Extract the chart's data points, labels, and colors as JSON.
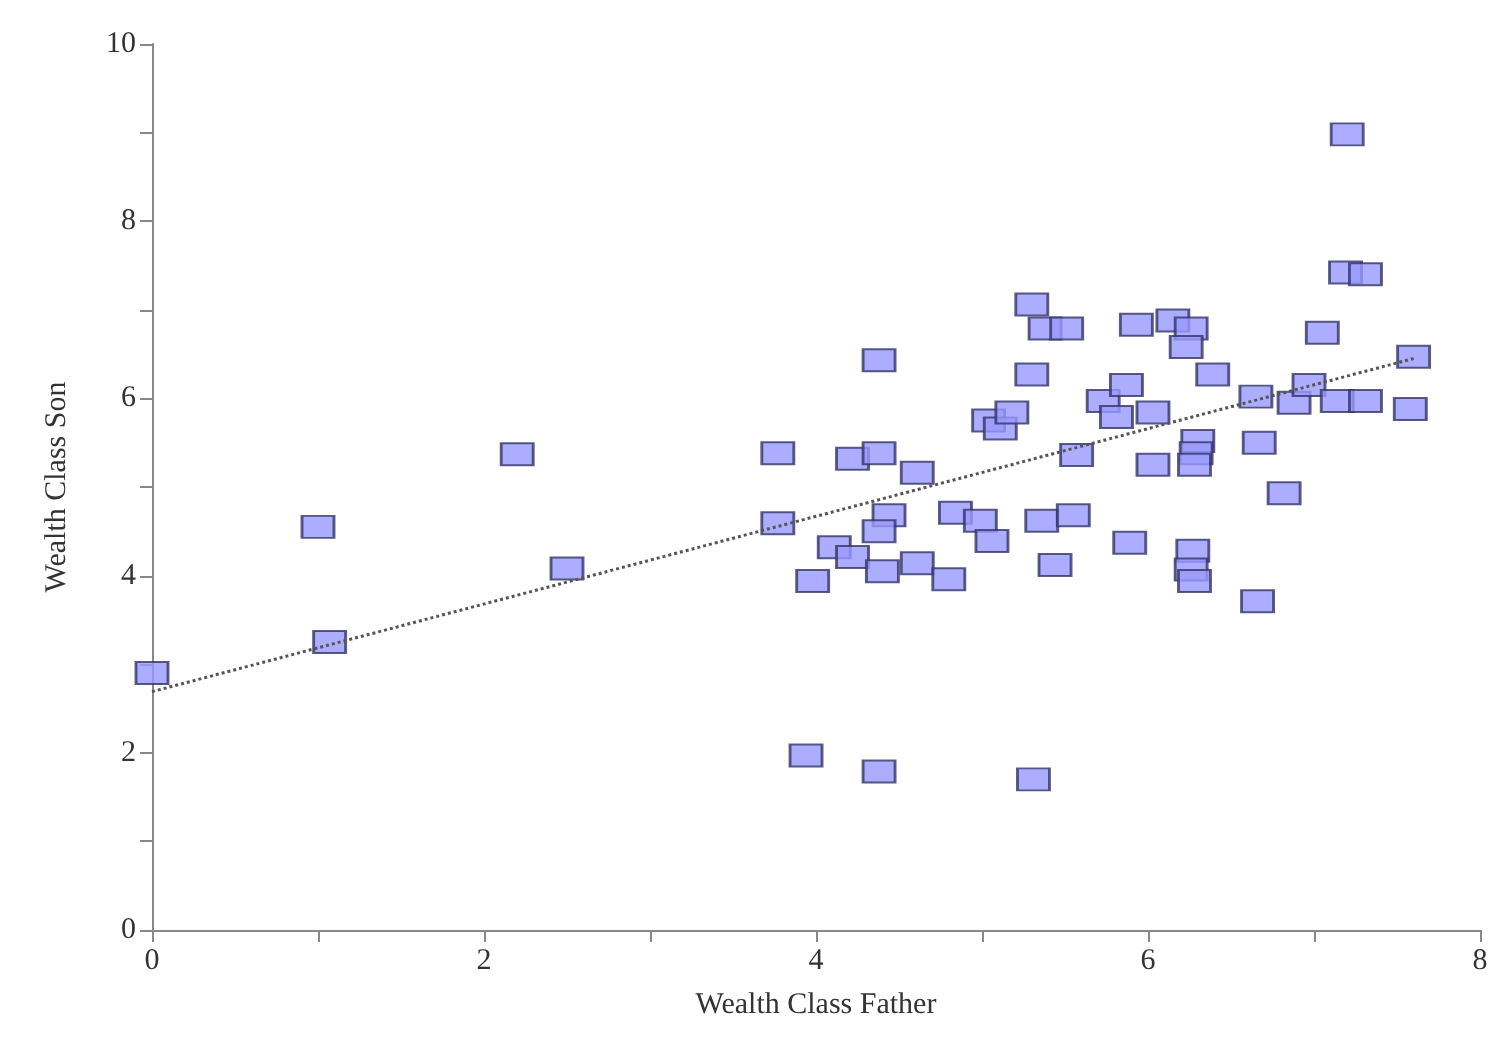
{
  "chart_data": {
    "type": "scatter",
    "xlabel": "Wealth Class Father",
    "ylabel": "Wealth Class Son",
    "xlim": [
      0,
      8
    ],
    "xticks": [
      0,
      {
        "value": 1,
        "label": null
      },
      2,
      {
        "value": 3,
        "label": null
      },
      4,
      {
        "value": 5,
        "label": null
      },
      6,
      {
        "value": 7,
        "label": null
      },
      8
    ],
    "ylim": [
      0,
      10
    ],
    "yticks": [
      0,
      {
        "value": 1,
        "label": null
      },
      2,
      {
        "value": 3,
        "label": null
      },
      4,
      {
        "value": 5,
        "label": null
      },
      6,
      {
        "value": 7,
        "label": null
      },
      8,
      {
        "value": 9,
        "label": null
      },
      10
    ],
    "grid": false,
    "marker": "square",
    "series": [
      {
        "color": "#9999ff",
        "x": [
          0,
          1.0,
          1.07,
          2.2,
          2.5,
          3.77,
          3.77,
          3.98,
          3.94,
          4.11,
          4.22,
          4.22,
          4.38,
          4.38,
          4.44,
          4.38,
          4.4,
          4.61,
          4.61,
          4.8,
          4.38,
          4.84,
          4.99,
          5.06,
          5.04,
          5.11,
          5.18,
          5.3,
          5.38,
          5.51,
          5.3,
          5.57,
          5.36,
          5.55,
          5.44,
          5.31,
          5.73,
          5.93,
          6.15,
          6.26,
          6.23,
          6.39,
          5.87,
          5.81,
          6.03,
          6.3,
          6.29,
          6.28,
          6.03,
          5.89,
          6.27,
          6.26,
          6.28,
          6.66,
          6.65,
          6.67,
          6.82,
          6.88,
          6.97,
          7.14,
          7.31,
          7.05,
          7.2,
          7.19,
          7.31,
          7.6,
          7.58
        ],
        "values": [
          2.9,
          4.55,
          3.25,
          5.37,
          4.08,
          5.38,
          4.59,
          3.94,
          1.97,
          4.32,
          4.21,
          5.32,
          5.38,
          6.43,
          4.68,
          4.5,
          4.05,
          5.16,
          4.14,
          3.96,
          1.79,
          4.71,
          4.62,
          4.39,
          5.75,
          5.66,
          5.84,
          7.06,
          6.79,
          6.79,
          6.27,
          5.36,
          4.62,
          4.68,
          4.12,
          1.7,
          5.97,
          6.83,
          6.88,
          6.79,
          6.58,
          6.27,
          6.15,
          5.79,
          5.84,
          5.52,
          5.38,
          5.25,
          5.25,
          4.37,
          4.28,
          4.07,
          3.94,
          3.71,
          6.02,
          5.5,
          4.93,
          5.95,
          6.15,
          5.97,
          5.97,
          6.74,
          8.98,
          7.42,
          7.4,
          6.47,
          5.88
        ]
      },
      {
        "type": "line",
        "color": "#555555",
        "line_style": "dotted",
        "marker": "none",
        "x": [
          0,
          7.6
        ],
        "values": [
          2.69,
          6.45
        ]
      }
    ]
  }
}
